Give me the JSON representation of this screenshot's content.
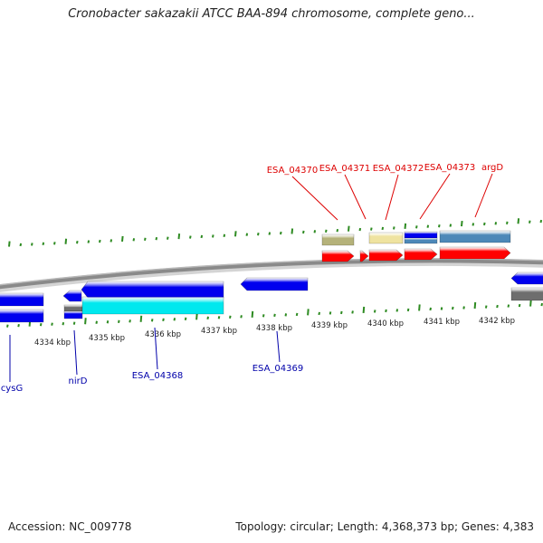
{
  "title": "Cronobacter sakazakii ATCC BAA-894 chromosome, complete geno...",
  "footer": {
    "accession": "Accession: NC_009778",
    "topology": "Topology: circular; Length: 4,368,373 bp; Genes: 4,383"
  },
  "colors": {
    "backbone": "#8a8a8a",
    "tick": "#2e8b22",
    "plus_strand_gene": "#ff0000",
    "minus_strand_gene": "#0000ee",
    "cds_cyan": "#00e8ee",
    "cds_khaki": "#b5b27a",
    "cds_yellow": "#efe3a0",
    "cds_steelblue": "#4d88b8",
    "cds_gray": "#6e6e6e",
    "top_label": "#dd0000",
    "bottom_label": "#0000aa"
  },
  "kbp_labels": [
    "4334 kbp",
    "4335 kbp",
    "4336 kbp",
    "4337 kbp",
    "4338 kbp",
    "4339 kbp",
    "4340 kbp",
    "4341 kbp",
    "4342 kbp"
  ],
  "top_features": [
    {
      "label": "ESA_04370"
    },
    {
      "label": "ESA_04371"
    },
    {
      "label": "ESA_04372"
    },
    {
      "label": "ESA_04373"
    },
    {
      "label": "argD"
    }
  ],
  "bottom_features": [
    {
      "label": "cysG"
    },
    {
      "label": "nirD"
    },
    {
      "label": "ESA_04368"
    },
    {
      "label": "ESA_04369"
    }
  ]
}
